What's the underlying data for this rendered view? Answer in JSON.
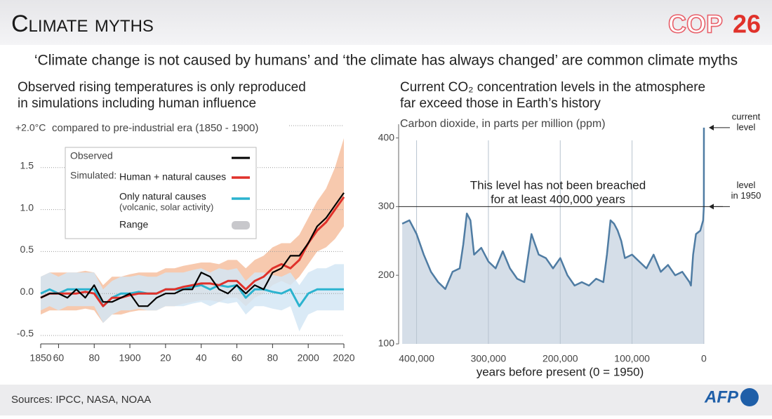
{
  "header": {
    "title": "Climate myths",
    "logo_left": "COP",
    "logo_right": "26"
  },
  "subtitle": "‘Climate change is not caused by humans’ and ‘the climate has always changed’ are common climate myths",
  "footer": {
    "source": "Sources: IPCC, NASA, NOAA",
    "logo": "AFP"
  },
  "chart_data": [
    {
      "type": "line",
      "title": [
        "Observed rising temperatures is only reproduced",
        "in simulations including human influence"
      ],
      "annotation": "compared to pre-industrial era (1850 - 1900)",
      "x": [
        1850,
        1855,
        1860,
        1865,
        1870,
        1875,
        1880,
        1885,
        1890,
        1895,
        1900,
        1905,
        1910,
        1915,
        1920,
        1925,
        1930,
        1935,
        1940,
        1945,
        1950,
        1955,
        1960,
        1965,
        1970,
        1975,
        1980,
        1985,
        1990,
        1995,
        2000,
        2005,
        2010,
        2015,
        2020
      ],
      "xlim": [
        1850,
        2020
      ],
      "xticks": [
        {
          "value": 1850,
          "label": "1850"
        },
        {
          "value": 1860,
          "label": "60"
        },
        {
          "value": 1880,
          "label": "80"
        },
        {
          "value": 1900,
          "label": "1900"
        },
        {
          "value": 1920,
          "label": "20"
        },
        {
          "value": 1940,
          "label": "40"
        },
        {
          "value": 1960,
          "label": "60"
        },
        {
          "value": 1980,
          "label": "80"
        },
        {
          "value": 2000,
          "label": "2000"
        },
        {
          "value": 2020,
          "label": "2020"
        }
      ],
      "ylim": [
        -0.6,
        2.0
      ],
      "yticks": [
        -0.5,
        {
          "value": 0,
          "label": "0.0"
        },
        0.5,
        {
          "value": 1,
          "label": "1.0"
        },
        1.5,
        {
          "value": 2,
          "label": "+2.0°C"
        }
      ],
      "grid": true,
      "legend_prefix": "Simulated:",
      "range_label": "Range",
      "series": [
        {
          "name": "Observed",
          "color": "#000000",
          "values": [
            -0.05,
            0.0,
            0.0,
            -0.05,
            0.05,
            -0.05,
            0.1,
            -0.1,
            -0.1,
            -0.05,
            0.0,
            -0.15,
            -0.15,
            -0.05,
            0.0,
            0.0,
            0.05,
            0.05,
            0.25,
            0.2,
            0.05,
            0.0,
            0.1,
            0.0,
            0.1,
            0.05,
            0.25,
            0.3,
            0.45,
            0.45,
            0.6,
            0.8,
            0.9,
            1.05,
            1.2
          ]
        },
        {
          "name": "Human + natural causes",
          "color": "#e0312a",
          "values": [
            -0.05,
            0.0,
            0.0,
            0.0,
            0.0,
            0.02,
            0.0,
            -0.15,
            -0.05,
            -0.05,
            -0.02,
            0.0,
            0.0,
            0.0,
            0.05,
            0.05,
            0.08,
            0.1,
            0.12,
            0.12,
            0.1,
            0.15,
            0.15,
            0.05,
            0.15,
            0.2,
            0.3,
            0.35,
            0.3,
            0.4,
            0.6,
            0.75,
            0.85,
            1.0,
            1.15
          ]
        },
        {
          "name": "Only natural causes",
          "note": "(volcanic, solar activity)",
          "color": "#2bb3cf",
          "values": [
            0.0,
            0.05,
            0.0,
            0.05,
            0.05,
            0.05,
            0.05,
            -0.15,
            -0.05,
            0.0,
            0.0,
            0.02,
            0.0,
            0.0,
            0.05,
            0.05,
            0.05,
            0.08,
            0.1,
            0.05,
            0.1,
            0.08,
            0.1,
            -0.05,
            0.05,
            0.05,
            0.02,
            0.0,
            0.05,
            -0.15,
            0.0,
            0.05,
            0.05,
            0.05,
            0.05
          ]
        }
      ],
      "bands": [
        {
          "color": "#f6bfa0",
          "lower": [
            -0.25,
            -0.2,
            -0.2,
            -0.2,
            -0.2,
            -0.18,
            -0.2,
            -0.35,
            -0.25,
            -0.25,
            -0.22,
            -0.2,
            -0.2,
            -0.2,
            -0.15,
            -0.15,
            -0.12,
            -0.1,
            -0.08,
            -0.08,
            -0.1,
            -0.05,
            -0.05,
            -0.15,
            -0.05,
            0.0,
            0.1,
            0.15,
            0.1,
            0.2,
            0.35,
            0.5,
            0.55,
            0.65,
            0.8
          ],
          "upper": [
            0.2,
            0.25,
            0.25,
            0.25,
            0.25,
            0.27,
            0.25,
            0.1,
            0.2,
            0.2,
            0.23,
            0.25,
            0.25,
            0.25,
            0.3,
            0.3,
            0.33,
            0.35,
            0.37,
            0.37,
            0.35,
            0.4,
            0.4,
            0.3,
            0.4,
            0.45,
            0.55,
            0.6,
            0.6,
            0.7,
            0.9,
            1.1,
            1.25,
            1.5,
            1.85
          ]
        },
        {
          "color": "#d3e6f4",
          "lower": [
            -0.2,
            -0.15,
            -0.2,
            -0.15,
            -0.15,
            -0.15,
            -0.15,
            -0.35,
            -0.25,
            -0.2,
            -0.2,
            -0.18,
            -0.2,
            -0.2,
            -0.15,
            -0.15,
            -0.15,
            -0.12,
            -0.1,
            -0.15,
            -0.1,
            -0.12,
            -0.1,
            -0.25,
            -0.15,
            -0.15,
            -0.18,
            -0.2,
            -0.15,
            -0.45,
            -0.25,
            -0.2,
            -0.2,
            -0.2,
            -0.2
          ],
          "upper": [
            0.2,
            0.25,
            0.2,
            0.25,
            0.25,
            0.25,
            0.25,
            0.05,
            0.15,
            0.2,
            0.2,
            0.22,
            0.2,
            0.2,
            0.25,
            0.25,
            0.25,
            0.28,
            0.3,
            0.25,
            0.3,
            0.28,
            0.3,
            0.15,
            0.25,
            0.25,
            0.22,
            0.2,
            0.25,
            0.1,
            0.25,
            0.3,
            0.3,
            0.35,
            0.35
          ]
        }
      ]
    },
    {
      "type": "area",
      "title": [
        "Current CO₂ concentration levels in the atmosphere",
        "far exceed those in Earth’s history"
      ],
      "y_label": "Carbon dioxide, in parts per million (ppm)",
      "x_label": "years before present (0 = 1950)",
      "xlim": [
        425000,
        -3000
      ],
      "xticks": [
        {
          "value": 400000,
          "label": "400,000"
        },
        {
          "value": 300000,
          "label": "300,000"
        },
        {
          "value": 200000,
          "label": "200,000"
        },
        {
          "value": 100000,
          "label": "100,000"
        },
        0
      ],
      "ylim": [
        100,
        420
      ],
      "yticks": [
        100,
        200,
        300,
        400
      ],
      "grid": true,
      "reference_line": {
        "value": 300,
        "label": [
          "This level has not been breached",
          "for at least 400,000 years"
        ]
      },
      "annotations": [
        {
          "text": [
            "current",
            "level"
          ],
          "value": 415
        },
        {
          "text": [
            "level",
            "in 1950"
          ],
          "value": 300
        }
      ],
      "x": [
        420000,
        410000,
        400000,
        390000,
        380000,
        370000,
        360000,
        350000,
        340000,
        335000,
        330000,
        325000,
        320000,
        310000,
        300000,
        290000,
        280000,
        270000,
        260000,
        250000,
        245000,
        240000,
        235000,
        230000,
        220000,
        210000,
        200000,
        190000,
        180000,
        170000,
        160000,
        150000,
        140000,
        135000,
        130000,
        125000,
        120000,
        115000,
        110000,
        100000,
        90000,
        80000,
        70000,
        60000,
        50000,
        40000,
        30000,
        20000,
        18000,
        15000,
        11000,
        5000,
        1000,
        0,
        -70
      ],
      "series": [
        {
          "color": "#4f7ca3",
          "fill": "#d5dee8",
          "values": [
            275,
            280,
            260,
            230,
            205,
            190,
            180,
            205,
            210,
            245,
            290,
            280,
            230,
            240,
            220,
            210,
            235,
            210,
            195,
            190,
            225,
            260,
            245,
            230,
            225,
            210,
            225,
            200,
            185,
            190,
            185,
            195,
            190,
            230,
            280,
            275,
            265,
            250,
            225,
            230,
            220,
            210,
            230,
            205,
            215,
            200,
            205,
            190,
            185,
            230,
            260,
            265,
            280,
            300,
            415
          ]
        }
      ]
    }
  ]
}
